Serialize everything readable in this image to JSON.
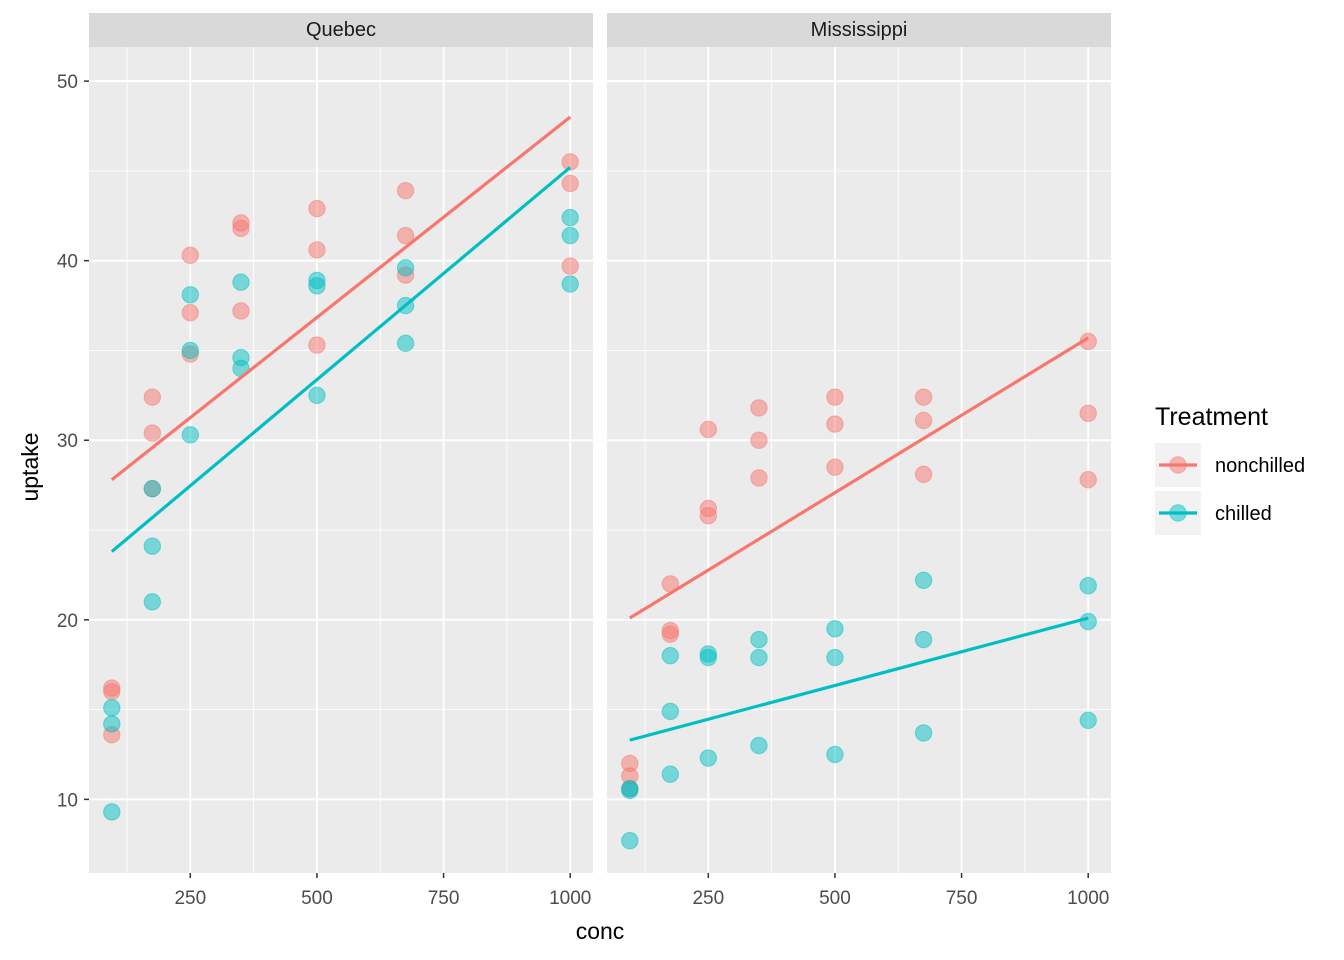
{
  "chart_data": {
    "type": "scatter",
    "facets": [
      {
        "name": "Quebec",
        "series": [
          {
            "name": "nonchilled",
            "points": [
              [
                95,
                16.0
              ],
              [
                175,
                30.4
              ],
              [
                250,
                34.8
              ],
              [
                350,
                37.2
              ],
              [
                500,
                35.3
              ],
              [
                675,
                39.2
              ],
              [
                1000,
                39.7
              ],
              [
                95,
                13.6
              ],
              [
                175,
                27.3
              ],
              [
                250,
                37.1
              ],
              [
                350,
                41.8
              ],
              [
                500,
                40.6
              ],
              [
                675,
                41.4
              ],
              [
                1000,
                44.3
              ],
              [
                95,
                16.2
              ],
              [
                175,
                32.4
              ],
              [
                250,
                40.3
              ],
              [
                350,
                42.1
              ],
              [
                500,
                42.9
              ],
              [
                675,
                43.9
              ],
              [
                1000,
                45.5
              ]
            ],
            "fit": [
              [
                95,
                27.8
              ],
              [
                1000,
                48.0
              ]
            ]
          },
          {
            "name": "chilled",
            "points": [
              [
                95,
                14.2
              ],
              [
                175,
                24.1
              ],
              [
                250,
                30.3
              ],
              [
                350,
                34.6
              ],
              [
                500,
                32.5
              ],
              [
                675,
                35.4
              ],
              [
                1000,
                38.7
              ],
              [
                95,
                9.3
              ],
              [
                175,
                27.3
              ],
              [
                250,
                35.0
              ],
              [
                350,
                38.8
              ],
              [
                500,
                38.6
              ],
              [
                675,
                37.5
              ],
              [
                1000,
                42.4
              ],
              [
                95,
                15.1
              ],
              [
                175,
                21.0
              ],
              [
                250,
                38.1
              ],
              [
                350,
                34.0
              ],
              [
                500,
                38.9
              ],
              [
                675,
                39.6
              ],
              [
                1000,
                41.4
              ]
            ],
            "fit": [
              [
                95,
                23.8
              ],
              [
                1000,
                45.2
              ]
            ]
          }
        ]
      },
      {
        "name": "Mississippi",
        "series": [
          {
            "name": "nonchilled",
            "points": [
              [
                95,
                10.6
              ],
              [
                175,
                19.2
              ],
              [
                250,
                26.2
              ],
              [
                350,
                30.0
              ],
              [
                500,
                30.9
              ],
              [
                675,
                32.4
              ],
              [
                1000,
                35.5
              ],
              [
                95,
                12.0
              ],
              [
                175,
                22.0
              ],
              [
                250,
                30.6
              ],
              [
                350,
                31.8
              ],
              [
                500,
                32.4
              ],
              [
                675,
                31.1
              ],
              [
                1000,
                31.5
              ],
              [
                95,
                11.3
              ],
              [
                175,
                19.4
              ],
              [
                250,
                25.8
              ],
              [
                350,
                27.9
              ],
              [
                500,
                28.5
              ],
              [
                675,
                28.1
              ],
              [
                1000,
                27.8
              ]
            ],
            "fit": [
              [
                95,
                20.1
              ],
              [
                1000,
                35.7
              ]
            ]
          },
          {
            "name": "chilled",
            "points": [
              [
                95,
                10.5
              ],
              [
                175,
                14.9
              ],
              [
                250,
                18.1
              ],
              [
                350,
                18.9
              ],
              [
                500,
                19.5
              ],
              [
                675,
                22.2
              ],
              [
                1000,
                21.9
              ],
              [
                95,
                7.7
              ],
              [
                175,
                11.4
              ],
              [
                250,
                12.3
              ],
              [
                350,
                13.0
              ],
              [
                500,
                12.5
              ],
              [
                675,
                13.7
              ],
              [
                1000,
                14.4
              ],
              [
                95,
                10.6
              ],
              [
                175,
                18.0
              ],
              [
                250,
                17.9
              ],
              [
                350,
                17.9
              ],
              [
                500,
                17.9
              ],
              [
                675,
                18.9
              ],
              [
                1000,
                19.9
              ]
            ],
            "fit": [
              [
                95,
                13.3
              ],
              [
                1000,
                20.1
              ]
            ]
          }
        ]
      }
    ],
    "xlabel": "conc",
    "ylabel": "uptake",
    "xlim": [
      50,
      1045
    ],
    "ylim": [
      5.9,
      51.9
    ],
    "xticks": [
      250,
      500,
      750,
      1000
    ],
    "xtick_labels": [
      "250",
      "500",
      "750",
      "1000"
    ],
    "yticks": [
      10,
      20,
      30,
      40,
      50
    ],
    "ytick_labels": [
      "10",
      "20",
      "30",
      "40",
      "50"
    ],
    "grid": true,
    "legend": {
      "title": "Treatment",
      "placement": "right",
      "entries": [
        "nonchilled",
        "chilled"
      ]
    },
    "colors": {
      "nonchilled": "#F8766D",
      "chilled": "#00BFC4",
      "panel_background": "#EBEBEB",
      "strip_background": "#D9D9D9",
      "grid": "#FFFFFF"
    }
  }
}
